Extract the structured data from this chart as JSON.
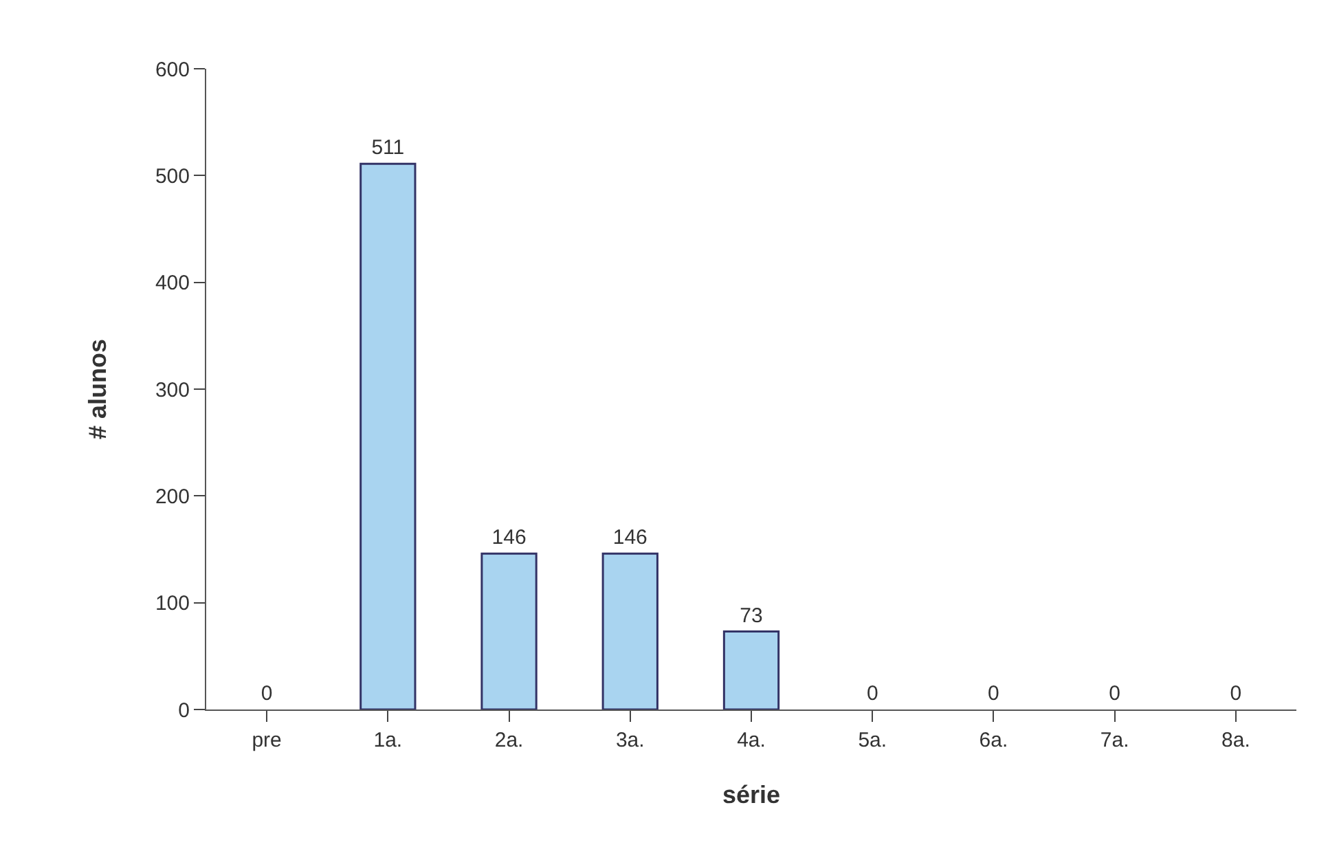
{
  "chart_data": {
    "type": "bar",
    "xlabel": "série",
    "ylabel": "# alunos",
    "categories": [
      "pre",
      "1a.",
      "2a.",
      "3a.",
      "4a.",
      "5a.",
      "6a.",
      "7a.",
      "8a."
    ],
    "values": [
      0,
      511,
      146,
      146,
      73,
      0,
      0,
      0,
      0
    ],
    "color": "#a9d4f0",
    "data_labels": true,
    "ylim": [
      0,
      600
    ],
    "yticks": [
      0,
      100,
      200,
      300,
      400,
      500,
      600
    ]
  }
}
